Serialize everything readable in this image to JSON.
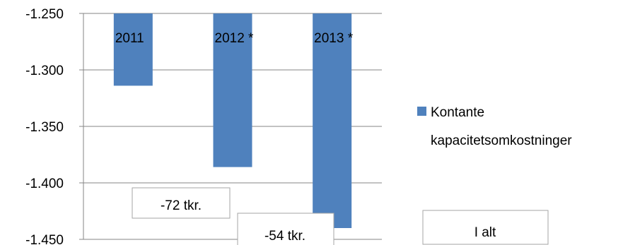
{
  "chart_data": {
    "type": "bar",
    "categories": [
      "2011",
      "2012 *",
      "2013 *"
    ],
    "series": [
      {
        "name": "Kontante kapacitetsomkostninger",
        "values": [
          -1314,
          -1386,
          -1440
        ],
        "color": "#4f81bd"
      }
    ],
    "yticks": [
      "-1.250",
      "-1.300",
      "-1.350",
      "-1.400",
      "-1.450"
    ],
    "ytick_values": [
      -1250,
      -1300,
      -1350,
      -1400,
      -1450
    ],
    "ylim": [
      -1450,
      -1250
    ],
    "grid": true,
    "legend_position": "right",
    "legend_lines": [
      "Kontante",
      "kapacitetsomkostninger"
    ],
    "annotations": [
      "-72 tkr.",
      "-54 tkr.",
      "I alt"
    ]
  }
}
